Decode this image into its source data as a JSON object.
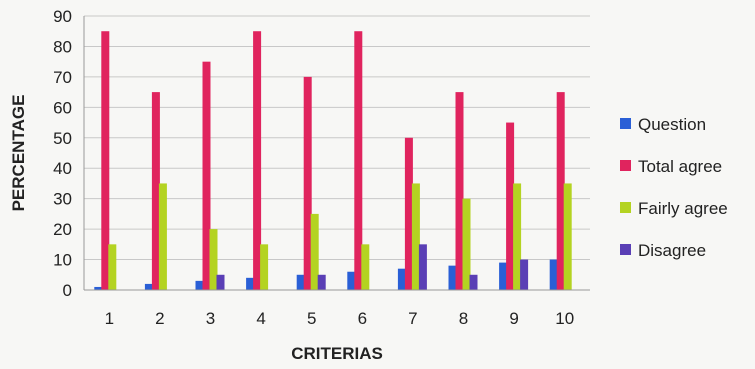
{
  "chart_data": {
    "type": "bar",
    "xlabel": "CRITERIAS",
    "ylabel": "PERCENTAGE",
    "ylim": [
      0,
      90
    ],
    "yticks": [
      0,
      10,
      20,
      30,
      40,
      50,
      60,
      70,
      80,
      90
    ],
    "grid": "horizontal",
    "legend_position": "right",
    "categories": [
      "1",
      "2",
      "3",
      "4",
      "5",
      "6",
      "7",
      "8",
      "9",
      "10"
    ],
    "series": [
      {
        "name": "Question",
        "color": "#2a5fd6",
        "values": [
          1,
          2,
          3,
          4,
          5,
          6,
          7,
          8,
          9,
          10
        ]
      },
      {
        "name": "Total agree",
        "color": "#e0245e",
        "values": [
          85,
          65,
          75,
          85,
          70,
          85,
          50,
          65,
          55,
          65
        ]
      },
      {
        "name": "Fairly agree",
        "color": "#b4d321",
        "values": [
          15,
          35,
          20,
          15,
          25,
          15,
          35,
          30,
          35,
          35
        ]
      },
      {
        "name": "Disagree",
        "color": "#5a3fb5",
        "values": [
          0,
          0,
          5,
          0,
          5,
          0,
          15,
          5,
          10,
          0
        ]
      }
    ]
  }
}
